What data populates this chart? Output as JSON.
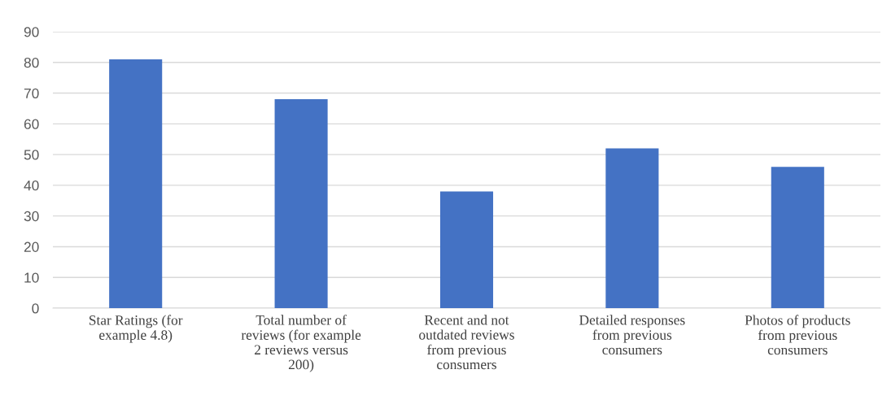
{
  "chart_data": {
    "type": "bar",
    "categories": [
      "Star Ratings (for example 4.8)",
      "Total number of reviews (for example 2 reviews versus 200)",
      "Recent and not outdated reviews from previous consumers",
      "Detailed responses from previous consumers",
      "Photos of products from previous consumers"
    ],
    "values": [
      81,
      68,
      38,
      52,
      46
    ],
    "color": "#4472c4",
    "ylim": [
      0,
      90
    ],
    "yticks": [
      0,
      10,
      20,
      30,
      40,
      50,
      60,
      70,
      80,
      90
    ],
    "grid": "y",
    "legend": false
  }
}
